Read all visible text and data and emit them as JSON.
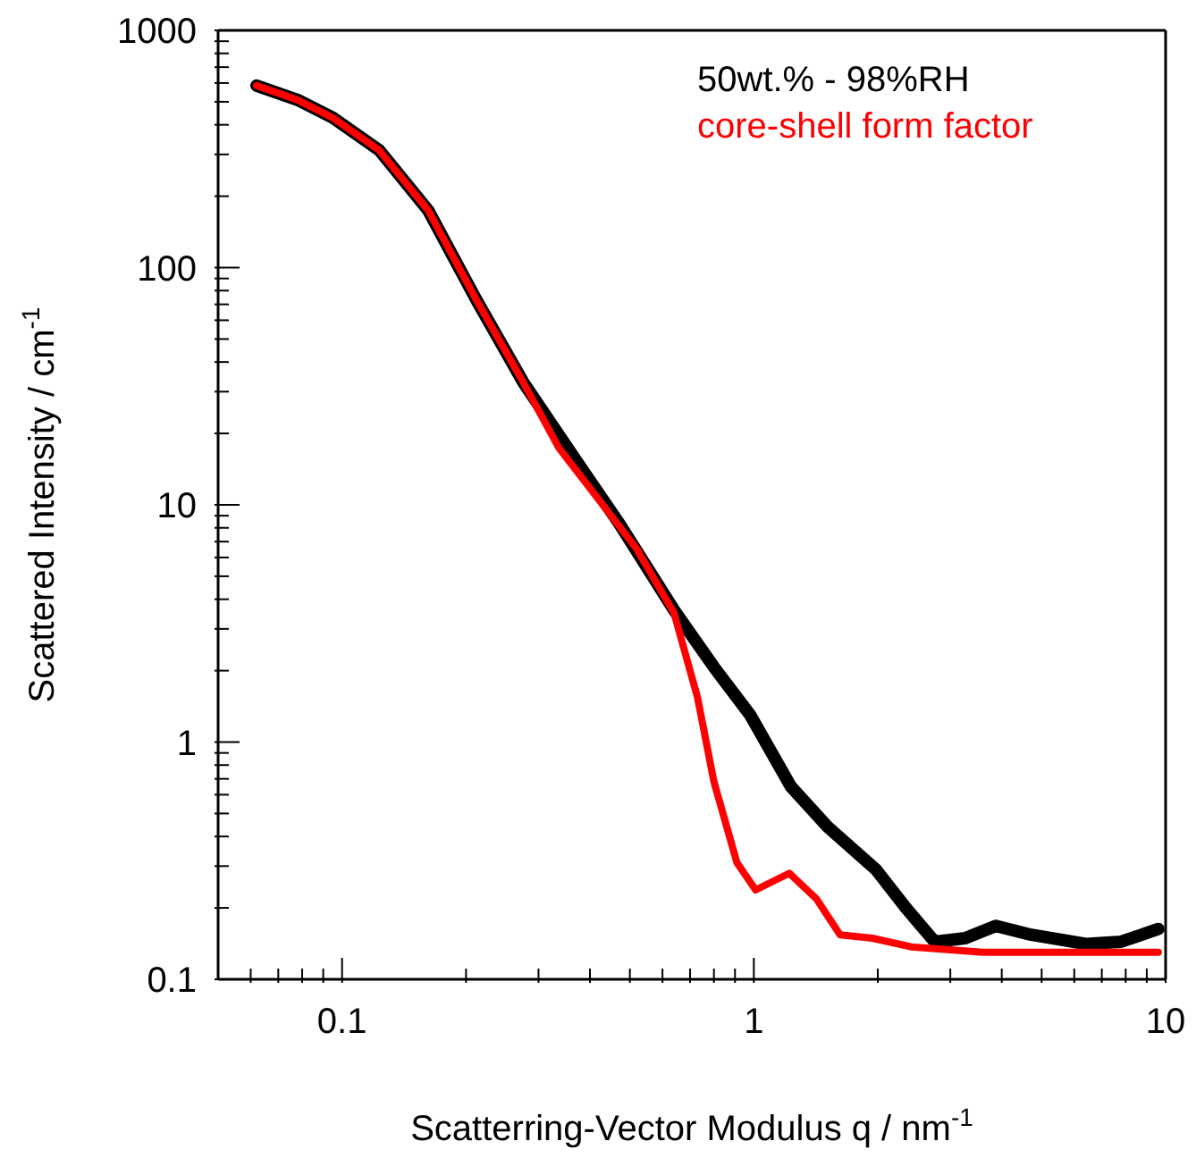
{
  "chart_data": {
    "type": "line",
    "xlabel": "Scatterring-Vector Modulus q  / nm$^{-1}$",
    "ylabel": "Scattered Intensity / cm$^{-1}$",
    "log": "xy",
    "marker": "none",
    "line_style": "solid",
    "xlim": [
      0.05,
      10
    ],
    "ylim": [
      0.1,
      1000
    ],
    "xticks": [
      {
        "value": 0.06,
        "label": null
      },
      {
        "value": 0.07,
        "label": null
      },
      {
        "value": 0.08,
        "label": null
      },
      {
        "value": 0.09,
        "label": null
      },
      0.1,
      {
        "value": 0.2,
        "label": null
      },
      {
        "value": 0.3,
        "label": null
      },
      {
        "value": 0.4,
        "label": null
      },
      {
        "value": 0.5,
        "label": null
      },
      {
        "value": 0.6,
        "label": null
      },
      {
        "value": 0.7,
        "label": null
      },
      {
        "value": 0.8,
        "label": null
      },
      {
        "value": 0.9,
        "label": null
      },
      1,
      {
        "value": 2,
        "label": null
      },
      {
        "value": 3,
        "label": null
      },
      {
        "value": 4,
        "label": null
      },
      {
        "value": 5,
        "label": null
      },
      {
        "value": 6,
        "label": null
      },
      {
        "value": 7,
        "label": null
      },
      {
        "value": 8,
        "label": null
      },
      {
        "value": 9,
        "label": null
      },
      10
    ],
    "yticks": [
      0.1,
      {
        "value": 0.2,
        "label": null
      },
      {
        "value": 0.3,
        "label": null
      },
      {
        "value": 0.4,
        "label": null
      },
      {
        "value": 0.5,
        "label": null
      },
      {
        "value": 0.6,
        "label": null
      },
      {
        "value": 0.7,
        "label": null
      },
      {
        "value": 0.8,
        "label": null
      },
      {
        "value": 0.9,
        "label": null
      },
      1,
      {
        "value": 2,
        "label": null
      },
      {
        "value": 3,
        "label": null
      },
      {
        "value": 4,
        "label": null
      },
      {
        "value": 5,
        "label": null
      },
      {
        "value": 6,
        "label": null
      },
      {
        "value": 7,
        "label": null
      },
      {
        "value": 8,
        "label": null
      },
      {
        "value": 9,
        "label": null
      },
      10,
      {
        "value": 20,
        "label": null
      },
      {
        "value": 30,
        "label": null
      },
      {
        "value": 40,
        "label": null
      },
      {
        "value": 50,
        "label": null
      },
      {
        "value": 60,
        "label": null
      },
      {
        "value": 70,
        "label": null
      },
      {
        "value": 80,
        "label": null
      },
      {
        "value": 90,
        "label": null
      },
      100,
      {
        "value": 200,
        "label": null
      },
      {
        "value": 300,
        "label": null
      },
      {
        "value": 400,
        "label": null
      },
      {
        "value": 500,
        "label": null
      },
      {
        "value": 600,
        "label": null
      },
      {
        "value": 700,
        "label": null
      },
      {
        "value": 800,
        "label": null
      },
      {
        "value": 900,
        "label": null
      },
      1000
    ],
    "series": [
      {
        "name": "50wt.% - 98%RH",
        "color": "#000000",
        "x": [
          0.062,
          0.078,
          0.095,
          0.123,
          0.162,
          0.212,
          0.275,
          0.36,
          0.472,
          0.64,
          0.8,
          0.98,
          1.23,
          1.51,
          1.98,
          2.34,
          2.75,
          3.26,
          3.87,
          4.72,
          6.4,
          7.8,
          9.6
        ],
        "values": [
          585,
          509,
          428,
          313,
          174,
          73,
          33,
          16.5,
          8.3,
          3.6,
          2.07,
          1.3,
          0.65,
          0.44,
          0.29,
          0.2,
          0.144,
          0.149,
          0.168,
          0.154,
          0.141,
          0.144,
          0.163
        ]
      },
      {
        "name": "core-shell form factor",
        "color": "#ff0000",
        "x": [
          0.062,
          0.078,
          0.095,
          0.123,
          0.162,
          0.212,
          0.275,
          0.336,
          0.52,
          0.64,
          0.73,
          0.8,
          0.91,
          1.01,
          1.22,
          1.42,
          1.62,
          1.94,
          2.41,
          3.6,
          9.6
        ],
        "values": [
          585,
          509,
          428,
          313,
          174,
          73,
          33,
          17.4,
          6.5,
          3.5,
          1.54,
          0.68,
          0.31,
          0.238,
          0.28,
          0.218,
          0.154,
          0.149,
          0.137,
          0.13,
          0.13
        ]
      }
    ]
  }
}
